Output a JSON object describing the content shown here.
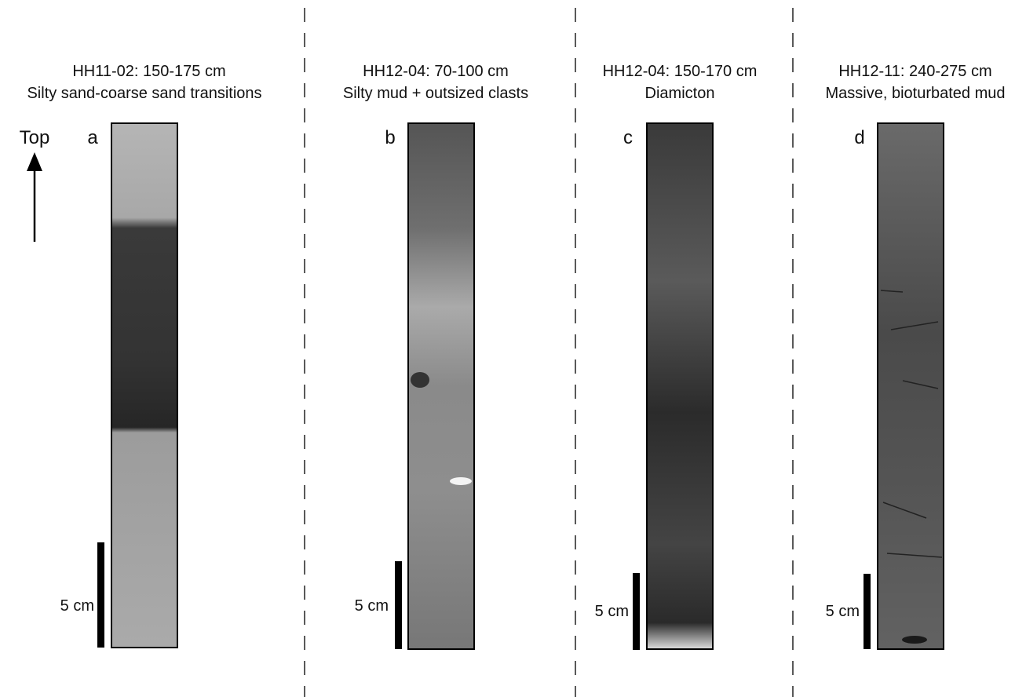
{
  "top_label": "Top",
  "panels": [
    {
      "letter": "a",
      "title": "HH11-02: 150-175 cm",
      "subtitle": "Silty sand-coarse sand transitions",
      "scale_label": "5 cm"
    },
    {
      "letter": "b",
      "title": "HH12-04: 70-100 cm",
      "subtitle": "Silty mud + outsized clasts",
      "scale_label": "5 cm"
    },
    {
      "letter": "c",
      "title": "HH12-04: 150-170 cm",
      "subtitle": "Diamicton",
      "scale_label": "5 cm"
    },
    {
      "letter": "d",
      "title": "HH12-11: 240-275 cm",
      "subtitle": "Massive, bioturbated mud",
      "scale_label": "5 cm"
    }
  ]
}
